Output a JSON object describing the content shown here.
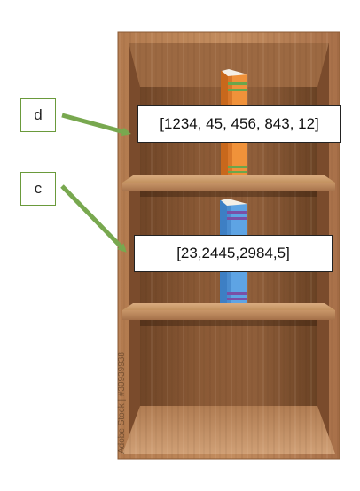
{
  "diagram": {
    "labels": [
      {
        "id": "d",
        "text": "d",
        "array": "[1234, 45, 456, 843, 12]",
        "book_color": "#f0923a"
      },
      {
        "id": "c",
        "text": "c",
        "array": "[23,2445,2984,5]",
        "book_color": "#5ea4e4"
      }
    ],
    "arrow_color": "#78a84f",
    "watermark": "Adobe Stock | #30939938"
  }
}
